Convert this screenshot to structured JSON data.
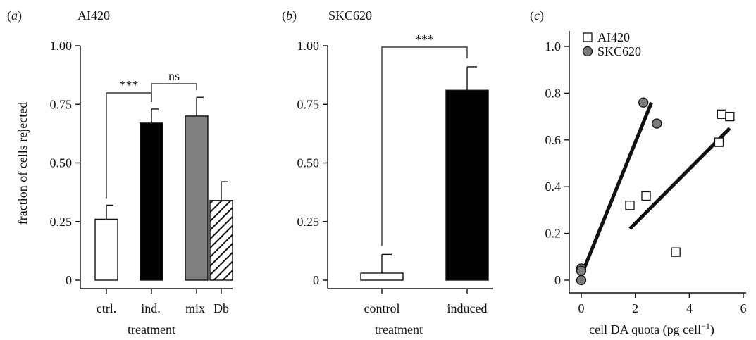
{
  "chart_data": [
    {
      "panel_label": "(a)",
      "panel_letter": "a",
      "title": "AI420",
      "type": "bar",
      "ylabel": "fraction of cells rejected",
      "xlabel": "treatment",
      "ylim": [
        0,
        1.0
      ],
      "yticks": [
        "0",
        "0.25",
        "0.50",
        "0.75",
        "1.00"
      ],
      "ytick_values": [
        0,
        0.25,
        0.5,
        0.75,
        1.0
      ],
      "categories": [
        "ctrl.",
        "ind.",
        "mix",
        "Db"
      ],
      "values": [
        0.26,
        0.67,
        0.7,
        0.34
      ],
      "errors": [
        0.06,
        0.06,
        0.08,
        0.08
      ],
      "fills": [
        "white",
        "black",
        "gray",
        "hatch"
      ],
      "significance": [
        {
          "from": 0,
          "to": 1,
          "label": "***"
        },
        {
          "from": 1,
          "to": 2,
          "label": "ns"
        }
      ]
    },
    {
      "panel_label": "(b)",
      "panel_letter": "b",
      "title": "SKC620",
      "type": "bar",
      "ylabel": "",
      "xlabel": "treatment",
      "ylim": [
        0,
        1.0
      ],
      "yticks": [
        "0",
        "0.25",
        "0.50",
        "0.75",
        "1.00"
      ],
      "ytick_values": [
        0,
        0.25,
        0.5,
        0.75,
        1.0
      ],
      "categories": [
        "control",
        "induced"
      ],
      "values": [
        0.03,
        0.81
      ],
      "errors": [
        0.08,
        0.1
      ],
      "fills": [
        "white",
        "black"
      ],
      "significance": [
        {
          "from": 0,
          "to": 1,
          "label": "***"
        }
      ]
    },
    {
      "panel_label": "(c)",
      "panel_letter": "c",
      "type": "scatter",
      "xlabel": "cell DA quota (pg cell",
      "xlabel_sup": "−1",
      "xlabel_end": ")",
      "ylabel": "",
      "xlim": [
        0,
        6
      ],
      "ylim": [
        0,
        1.0
      ],
      "xticks": [
        "0",
        "2",
        "4",
        "6"
      ],
      "xtick_values": [
        0,
        2,
        4,
        6
      ],
      "yticks": [
        "0",
        "0.2",
        "0.4",
        "0.6",
        "0.8",
        "1.0"
      ],
      "ytick_values": [
        0,
        0.2,
        0.4,
        0.6,
        0.8,
        1.0
      ],
      "legend_position": "top-left",
      "series": [
        {
          "name": "AI420",
          "marker": "square-open",
          "color": "#ffffff",
          "points": [
            [
              1.8,
              0.32
            ],
            [
              2.4,
              0.36
            ],
            [
              3.5,
              0.12
            ],
            [
              5.1,
              0.59
            ],
            [
              5.2,
              0.71
            ],
            [
              5.5,
              0.7
            ]
          ],
          "fit": [
            [
              1.8,
              0.22
            ],
            [
              5.5,
              0.65
            ]
          ]
        },
        {
          "name": "SKC620",
          "marker": "circle-filled",
          "color": "#7a7a7a",
          "points": [
            [
              0,
              0.05
            ],
            [
              0,
              0.04
            ],
            [
              0,
              0.0
            ],
            [
              2.3,
              0.76
            ],
            [
              2.8,
              0.67
            ]
          ],
          "fit": [
            [
              0,
              0.02
            ],
            [
              2.6,
              0.76
            ]
          ]
        }
      ]
    }
  ]
}
